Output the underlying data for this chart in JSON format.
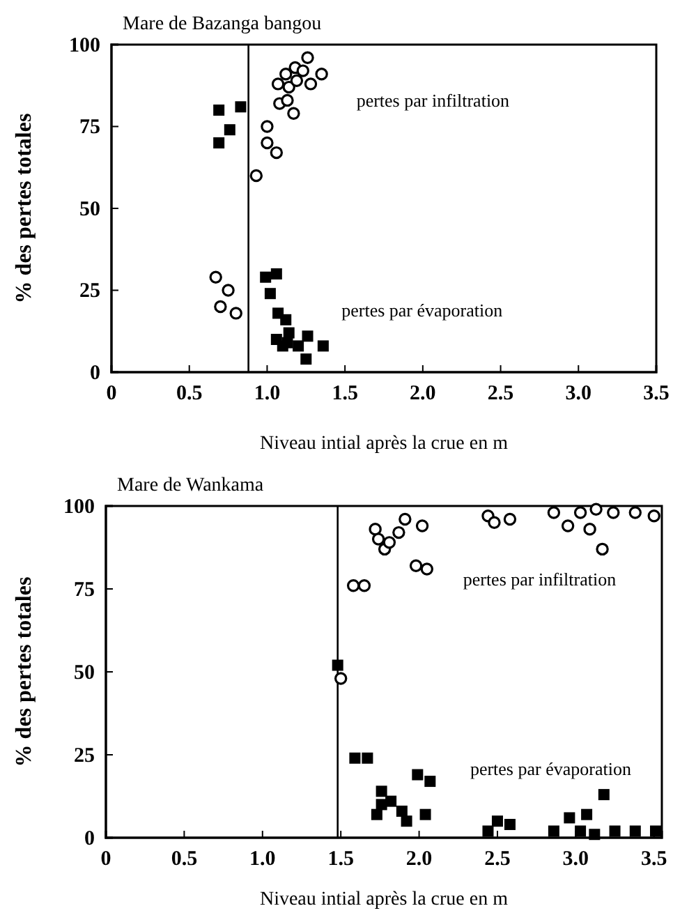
{
  "chart_data": [
    {
      "type": "scatter",
      "title": "Mare  de Bazanga bangou",
      "xlabel": "Niveau intial après la crue en m",
      "ylabel": "% des pertes totales",
      "xlim": [
        0,
        3.5
      ],
      "ylim": [
        0,
        100
      ],
      "xticks": [
        0,
        {
          "value": 0.5,
          "label": "0.5"
        },
        {
          "value": 1,
          "label": "1.0"
        },
        {
          "value": 1.5,
          "label": "1.5"
        },
        {
          "value": 2,
          "label": "2.0"
        },
        {
          "value": 2.5,
          "label": "2.5"
        },
        {
          "value": 3,
          "label": "3.0"
        },
        {
          "value": 3.5,
          "label": "3.5"
        }
      ],
      "yticks": [
        0,
        25,
        50,
        75,
        100
      ],
      "grid": false,
      "ref_lines": [
        {
          "axis": "x",
          "value": 0.88,
          "color": "#000000"
        }
      ],
      "series": [
        {
          "name": "pertes  par infiltration",
          "color": "#000000",
          "marker": "circle",
          "x": [
            0.93,
            1.0,
            1.0,
            1.06,
            1.08,
            1.07,
            1.12,
            1.13,
            1.14,
            1.17,
            1.18,
            1.19,
            1.23,
            1.26,
            1.28,
            1.35,
            0.67,
            0.75,
            0.7,
            0.8
          ],
          "values": [
            60,
            75,
            70,
            67,
            82,
            88,
            91,
            83,
            87,
            79,
            93,
            89,
            92,
            96,
            88,
            91,
            29,
            25,
            20,
            18
          ]
        },
        {
          "name": "pertes  par évaporation",
          "color": "#000000",
          "marker": "square",
          "x": [
            0.69,
            0.69,
            0.76,
            0.83,
            0.99,
            1.06,
            1.02,
            1.07,
            1.12,
            1.06,
            1.1,
            1.14,
            1.13,
            1.2,
            1.26,
            1.25,
            1.36
          ],
          "values": [
            80,
            70,
            74,
            81,
            29,
            30,
            24,
            18,
            16,
            10,
            8,
            12,
            9,
            8,
            11,
            4,
            8
          ]
        }
      ]
    },
    {
      "type": "scatter",
      "title": "Mare de Wankama",
      "xlabel": "Niveau intial après la crue en m",
      "ylabel": "% des pertes totales",
      "xlim": [
        0,
        3.55
      ],
      "ylim": [
        0,
        100
      ],
      "xticks": [
        0,
        {
          "value": 0.5,
          "label": "0.5"
        },
        {
          "value": 1,
          "label": "1.0"
        },
        {
          "value": 1.5,
          "label": "1.5"
        },
        {
          "value": 2,
          "label": "2.0"
        },
        {
          "value": 2.5,
          "label": "2.5"
        },
        {
          "value": 3,
          "label": "3.0"
        },
        {
          "value": 3.5,
          "label": "3.5"
        }
      ],
      "yticks": [
        0,
        25,
        50,
        75,
        100
      ],
      "grid": false,
      "ref_lines": [
        {
          "axis": "x",
          "value": 1.48,
          "color": "#000000"
        }
      ],
      "series": [
        {
          "name": "pertes  par infiltration",
          "color": "#000000",
          "marker": "circle",
          "x": [
            1.5,
            1.58,
            1.65,
            1.72,
            1.74,
            1.78,
            1.81,
            1.87,
            1.91,
            1.98,
            2.02,
            2.05,
            2.44,
            2.48,
            2.58,
            2.86,
            2.95,
            3.03,
            3.09,
            3.13,
            3.17,
            3.24,
            3.38,
            3.5
          ],
          "values": [
            48,
            76,
            76,
            93,
            90,
            87,
            89,
            92,
            96,
            82,
            94,
            81,
            97,
            95,
            96,
            98,
            94,
            98,
            93,
            99,
            87,
            98,
            98,
            97
          ]
        },
        {
          "name": "pertes  par évaporation",
          "color": "#000000",
          "marker": "square",
          "x": [
            1.48,
            1.59,
            1.67,
            1.73,
            1.76,
            1.76,
            1.82,
            1.89,
            1.92,
            1.99,
            2.07,
            2.04,
            2.44,
            2.5,
            2.58,
            2.86,
            2.96,
            3.03,
            3.07,
            3.12,
            3.18,
            3.25,
            3.38,
            3.51
          ],
          "values": [
            52,
            24,
            24,
            7,
            14,
            10,
            11,
            8,
            5,
            19,
            17,
            7,
            2,
            5,
            4,
            2,
            6,
            2,
            7,
            1,
            13,
            2,
            2,
            2
          ]
        }
      ]
    }
  ]
}
